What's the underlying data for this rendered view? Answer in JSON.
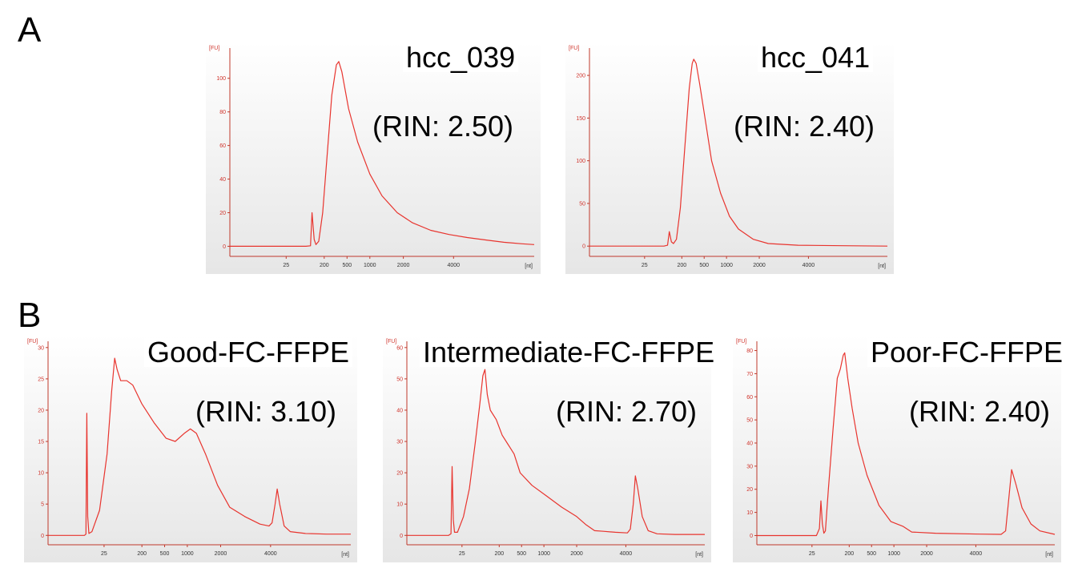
{
  "panel_labels": [
    "A",
    "B"
  ],
  "chart_data": [
    {
      "type": "line",
      "title": "hcc_039",
      "rin": "(RIN: 2.50)",
      "ylabel": "[FU]",
      "xlabel": "[nt]",
      "yticks": [
        0,
        20,
        40,
        60,
        80,
        100
      ],
      "xticks": [
        "25",
        "200",
        "500",
        "1000",
        "2000",
        "4000"
      ],
      "ylim": [
        -6,
        118
      ],
      "series": [
        {
          "color": "#e8342e",
          "points": [
            [
              0,
              0
            ],
            [
              0.25,
              0
            ],
            [
              0.265,
              0.3
            ],
            [
              0.27,
              20
            ],
            [
              0.277,
              4
            ],
            [
              0.283,
              1
            ],
            [
              0.292,
              3
            ],
            [
              0.305,
              20
            ],
            [
              0.32,
              55
            ],
            [
              0.335,
              90
            ],
            [
              0.35,
              108
            ],
            [
              0.358,
              110
            ],
            [
              0.368,
              104
            ],
            [
              0.39,
              82
            ],
            [
              0.42,
              62
            ],
            [
              0.46,
              43
            ],
            [
              0.5,
              30
            ],
            [
              0.55,
              20
            ],
            [
              0.6,
              14
            ],
            [
              0.66,
              9.5
            ],
            [
              0.72,
              7
            ],
            [
              0.78,
              5.2
            ],
            [
              0.84,
              3.8
            ],
            [
              0.9,
              2.4
            ],
            [
              0.96,
              1.5
            ],
            [
              1,
              1
            ]
          ]
        }
      ]
    },
    {
      "type": "line",
      "title": "hcc_041",
      "rin": "(RIN: 2.40)",
      "ylabel": "[FU]",
      "xlabel": "[nt]",
      "yticks": [
        0,
        50,
        100,
        150,
        200
      ],
      "xticks": [
        "25",
        "200",
        "500",
        "1000",
        "2000",
        "4000"
      ],
      "ylim": [
        -12,
        232
      ],
      "series": [
        {
          "color": "#e8342e",
          "points": [
            [
              0,
              0
            ],
            [
              0.25,
              0
            ],
            [
              0.262,
              1
            ],
            [
              0.268,
              17
            ],
            [
              0.275,
              5
            ],
            [
              0.282,
              3
            ],
            [
              0.292,
              8
            ],
            [
              0.305,
              45
            ],
            [
              0.32,
              115
            ],
            [
              0.335,
              185
            ],
            [
              0.345,
              214
            ],
            [
              0.35,
              219
            ],
            [
              0.358,
              214
            ],
            [
              0.37,
              190
            ],
            [
              0.39,
              145
            ],
            [
              0.41,
              100
            ],
            [
              0.44,
              62
            ],
            [
              0.47,
              35
            ],
            [
              0.5,
              20
            ],
            [
              0.55,
              8
            ],
            [
              0.6,
              3
            ],
            [
              0.7,
              1
            ],
            [
              0.85,
              0.5
            ],
            [
              1,
              0
            ]
          ]
        }
      ]
    },
    {
      "type": "line",
      "title": "Good-FC-FFPE",
      "rin": "(RIN: 3.10)",
      "ylabel": "[FU]",
      "xlabel": "[nt]",
      "yticks": [
        0,
        5,
        10,
        15,
        20,
        25,
        30
      ],
      "xticks": [
        "25",
        "200",
        "500",
        "1000",
        "2000",
        "4000"
      ],
      "ylim": [
        -1.5,
        31
      ],
      "series": [
        {
          "color": "#e8342e",
          "points": [
            [
              0,
              0
            ],
            [
              0.12,
              0
            ],
            [
              0.125,
              0.2
            ],
            [
              0.128,
              19.5
            ],
            [
              0.131,
              3
            ],
            [
              0.135,
              0.3
            ],
            [
              0.145,
              0.6
            ],
            [
              0.17,
              4
            ],
            [
              0.195,
              13
            ],
            [
              0.21,
              23
            ],
            [
              0.22,
              28.3
            ],
            [
              0.228,
              26.5
            ],
            [
              0.24,
              24.7
            ],
            [
              0.26,
              24.7
            ],
            [
              0.28,
              24
            ],
            [
              0.31,
              21
            ],
            [
              0.35,
              18
            ],
            [
              0.39,
              15.5
            ],
            [
              0.42,
              15
            ],
            [
              0.45,
              16.3
            ],
            [
              0.47,
              17
            ],
            [
              0.49,
              16.3
            ],
            [
              0.52,
              13
            ],
            [
              0.56,
              8
            ],
            [
              0.6,
              4.5
            ],
            [
              0.65,
              3
            ],
            [
              0.7,
              1.8
            ],
            [
              0.73,
              1.5
            ],
            [
              0.74,
              2
            ],
            [
              0.75,
              5
            ],
            [
              0.757,
              7.4
            ],
            [
              0.765,
              5
            ],
            [
              0.78,
              1.5
            ],
            [
              0.8,
              0.6
            ],
            [
              0.85,
              0.3
            ],
            [
              0.92,
              0.2
            ],
            [
              1,
              0.2
            ]
          ]
        }
      ]
    },
    {
      "type": "line",
      "title": "Intermediate-FC-FFPE",
      "rin": "(RIN: 2.70)",
      "ylabel": "[FU]",
      "xlabel": "[nt]",
      "yticks": [
        0,
        10,
        20,
        30,
        40,
        50,
        60
      ],
      "xticks": [
        "25",
        "200",
        "500",
        "1000",
        "2000",
        "4000"
      ],
      "ylim": [
        -3,
        62
      ],
      "series": [
        {
          "color": "#e8342e",
          "points": [
            [
              0,
              0
            ],
            [
              0.14,
              0
            ],
            [
              0.148,
              0.5
            ],
            [
              0.152,
              22
            ],
            [
              0.156,
              5
            ],
            [
              0.16,
              1
            ],
            [
              0.17,
              1
            ],
            [
              0.19,
              6
            ],
            [
              0.21,
              15
            ],
            [
              0.23,
              30
            ],
            [
              0.245,
              42
            ],
            [
              0.255,
              51
            ],
            [
              0.262,
              53
            ],
            [
              0.27,
              45
            ],
            [
              0.28,
              40
            ],
            [
              0.3,
              37
            ],
            [
              0.32,
              32
            ],
            [
              0.34,
              29
            ],
            [
              0.36,
              26
            ],
            [
              0.38,
              20
            ],
            [
              0.42,
              16
            ],
            [
              0.47,
              12.5
            ],
            [
              0.52,
              9
            ],
            [
              0.57,
              6
            ],
            [
              0.6,
              3.5
            ],
            [
              0.63,
              1.5
            ],
            [
              0.66,
              1.3
            ],
            [
              0.7,
              1
            ],
            [
              0.74,
              0.8
            ],
            [
              0.75,
              2
            ],
            [
              0.76,
              10
            ],
            [
              0.767,
              19
            ],
            [
              0.775,
              15
            ],
            [
              0.79,
              6
            ],
            [
              0.81,
              1.5
            ],
            [
              0.84,
              0.5
            ],
            [
              0.9,
              0.3
            ],
            [
              1,
              0.3
            ]
          ]
        }
      ]
    },
    {
      "type": "line",
      "title": "Poor-FC-FFPE",
      "rin": "(RIN: 2.40)",
      "ylabel": "[FU]",
      "xlabel": "[nt]",
      "yticks": [
        0,
        10,
        20,
        30,
        40,
        50,
        60,
        70,
        80
      ],
      "xticks": [
        "25",
        "200",
        "500",
        "1000",
        "2000",
        "4000"
      ],
      "ylim": [
        -4,
        84
      ],
      "series": [
        {
          "color": "#e8342e",
          "points": [
            [
              0,
              0
            ],
            [
              0.2,
              0
            ],
            [
              0.21,
              3
            ],
            [
              0.215,
              15
            ],
            [
              0.22,
              5
            ],
            [
              0.225,
              1
            ],
            [
              0.23,
              2
            ],
            [
              0.24,
              20
            ],
            [
              0.255,
              45
            ],
            [
              0.27,
              68
            ],
            [
              0.28,
              72
            ],
            [
              0.29,
              78
            ],
            [
              0.295,
              79
            ],
            [
              0.305,
              68
            ],
            [
              0.32,
              55
            ],
            [
              0.34,
              40
            ],
            [
              0.37,
              26
            ],
            [
              0.41,
              13
            ],
            [
              0.45,
              6
            ],
            [
              0.49,
              4
            ],
            [
              0.52,
              1.5
            ],
            [
              0.6,
              1
            ],
            [
              0.75,
              0.6
            ],
            [
              0.82,
              0.5
            ],
            [
              0.835,
              2
            ],
            [
              0.845,
              15
            ],
            [
              0.855,
              28.5
            ],
            [
              0.87,
              22
            ],
            [
              0.89,
              12
            ],
            [
              0.92,
              5
            ],
            [
              0.95,
              2
            ],
            [
              1,
              0.5
            ]
          ]
        }
      ]
    }
  ]
}
